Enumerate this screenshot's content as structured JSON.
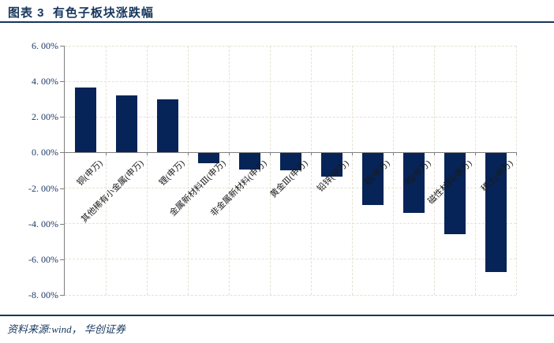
{
  "header": {
    "title": "图表 3  有色子板块涨跌幅"
  },
  "footer": {
    "source": "资料来源:wind， 华创证券"
  },
  "chart_data": {
    "type": "bar",
    "title": "有色子板块涨跌幅",
    "categories": [
      "铜(申万)",
      "其他稀有小金属(申万)",
      "锂(申万)",
      "金属新材料Ⅲ(申万)",
      "非金属新材料(申万)",
      "黄金Ⅲ(申万)",
      "铅锌(申万)",
      "铝(申万)",
      "钨(申万)",
      "磁性材料(申万)",
      "稀土(申万)"
    ],
    "values": [
      3.65,
      3.2,
      3.0,
      -0.55,
      -0.9,
      -0.95,
      -1.3,
      -2.9,
      -3.35,
      -4.55,
      -6.65
    ],
    "unit": "%",
    "xlabel": "",
    "ylabel": "",
    "ylim": [
      -8,
      6
    ],
    "ytick_values": [
      6,
      4,
      2,
      0,
      -2,
      -4,
      -6,
      -8
    ],
    "ytick_labels": [
      "6. 00%",
      "4. 00%",
      "2. 00%",
      "0. 00%",
      "-2. 00%",
      "-4. 00%",
      "-6. 00%",
      "-8. 00%"
    ],
    "grid": true,
    "legend": "none",
    "bar_color": "#062457",
    "axis_color": "#7f7f7f",
    "grid_color": "#e7e1d2"
  }
}
